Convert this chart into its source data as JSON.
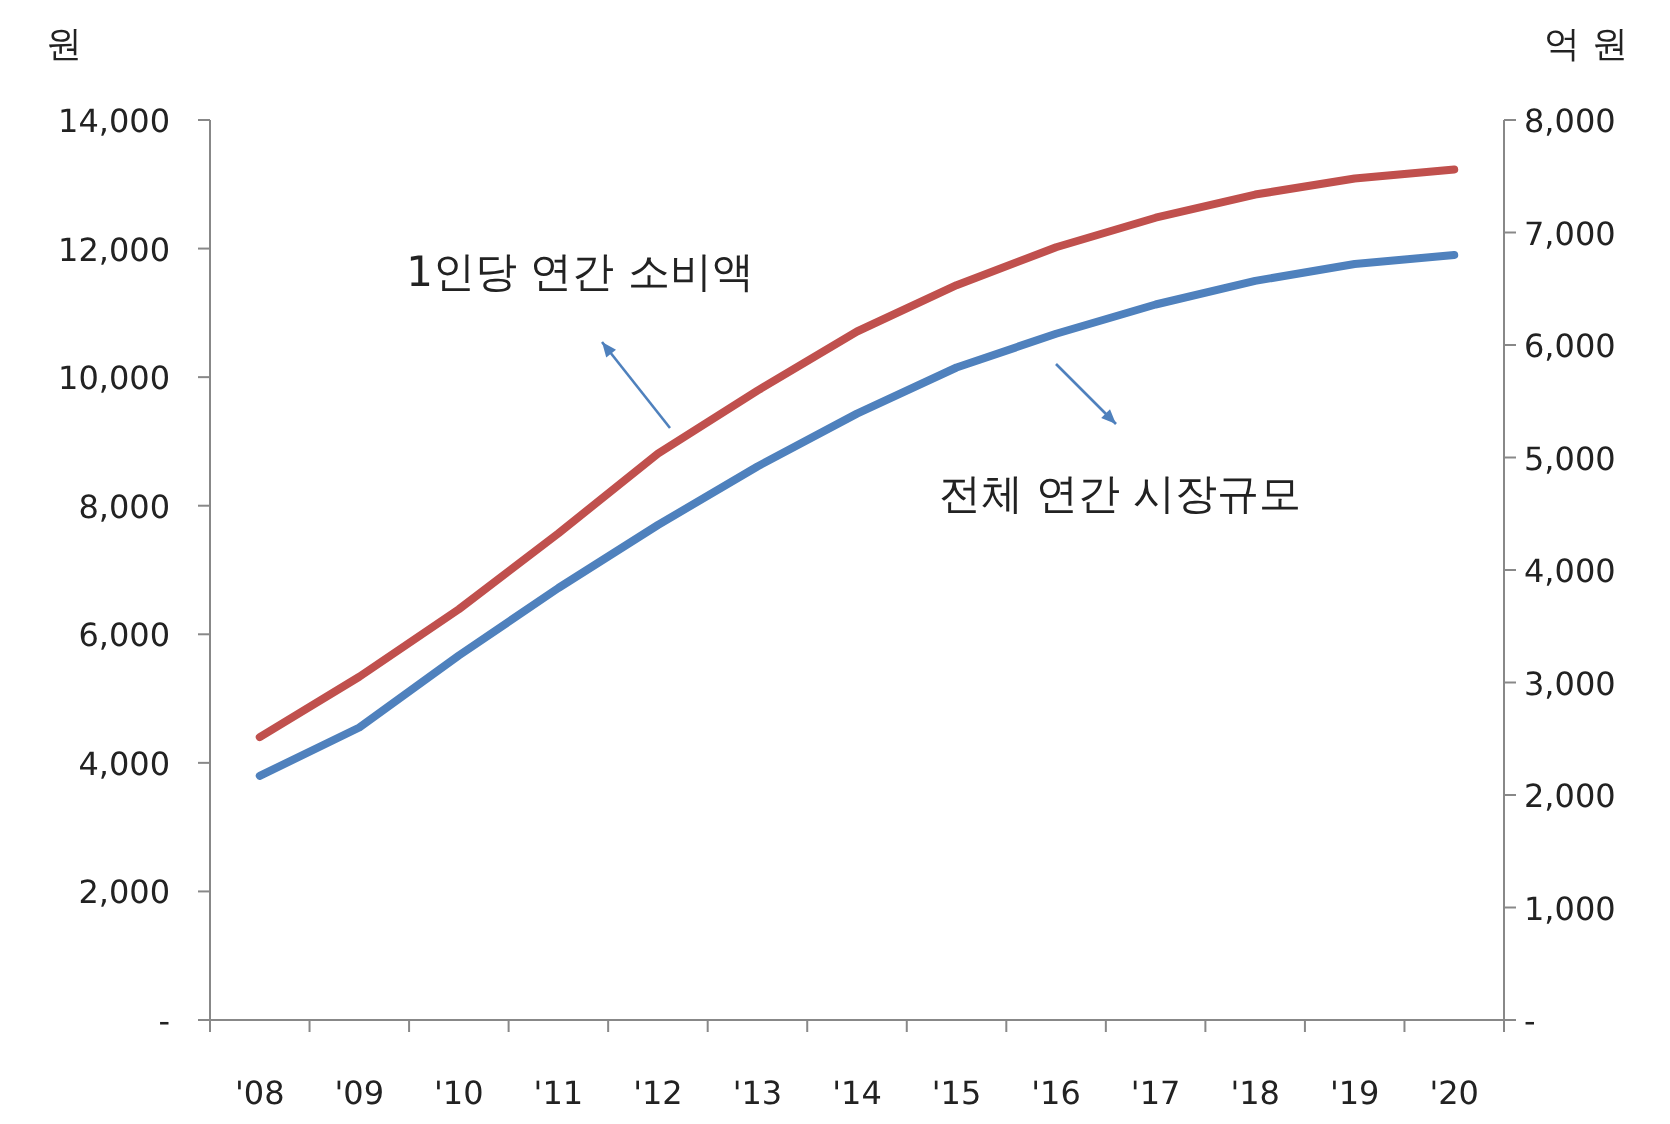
{
  "chart_data": {
    "type": "line",
    "ylabel": "원",
    "y2label": "억 원",
    "categories": [
      "'08",
      "'09",
      "'10",
      "'11",
      "'12",
      "'13",
      "'14",
      "'15",
      "'16",
      "'17",
      "'18",
      "'19",
      "'20"
    ],
    "series": [
      {
        "color": "#c0504d",
        "values": [
          4400,
          5340,
          6390,
          7570,
          8810,
          9790,
          10710,
          11430,
          12020,
          12480,
          12840,
          13090,
          13230
        ]
      },
      {
        "color": "#4f81bd",
        "axis": "y2",
        "values": [
          2170,
          2600,
          3240,
          3840,
          4400,
          4920,
          5390,
          5800,
          6100,
          6360,
          6570,
          6720,
          6800
        ]
      }
    ],
    "ylim": [
      0,
      14000
    ],
    "yticks": [
      {
        "value": 0,
        "label": "-"
      },
      {
        "value": 2000,
        "label": "2,000"
      },
      {
        "value": 4000,
        "label": "4,000"
      },
      {
        "value": 6000,
        "label": "6,000"
      },
      {
        "value": 8000,
        "label": "8,000"
      },
      {
        "value": 10000,
        "label": "10,000"
      },
      {
        "value": 12000,
        "label": "12,000"
      },
      {
        "value": 14000,
        "label": "14,000"
      }
    ],
    "y2lim": [
      0,
      8000
    ],
    "y2ticks": [
      {
        "value": 0,
        "label": "-"
      },
      {
        "value": 1000,
        "label": "1,000"
      },
      {
        "value": 2000,
        "label": "2,000"
      },
      {
        "value": 3000,
        "label": "3,000"
      },
      {
        "value": 4000,
        "label": "4,000"
      },
      {
        "value": 5000,
        "label": "5,000"
      },
      {
        "value": 6000,
        "label": "6,000"
      },
      {
        "value": 7000,
        "label": "7,000"
      },
      {
        "value": 8000,
        "label": "8,000"
      }
    ],
    "annotations": [
      "1인당 연간 소비액",
      "전체 연간 시장규모"
    ],
    "grid": false,
    "line_style": "solid",
    "marker": "none"
  }
}
